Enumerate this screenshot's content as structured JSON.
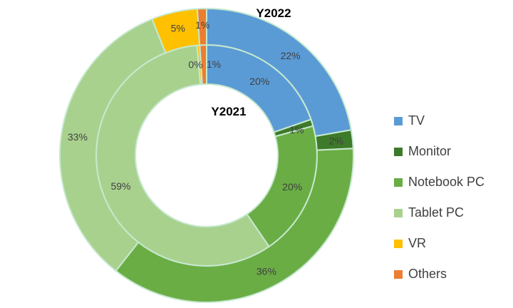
{
  "chart_data": {
    "type": "donut",
    "categories": [
      "TV",
      "Monitor",
      "Notebook PC",
      "Tablet PC",
      "VR",
      "Others"
    ],
    "colors": [
      "#5b9bd5",
      "#3d7a29",
      "#6aad45",
      "#a9d18e",
      "#ffc000",
      "#ed7d31"
    ],
    "series": [
      {
        "name": "Y2021",
        "values": [
          20,
          1,
          20,
          59,
          0,
          1
        ],
        "labels": [
          "20%",
          "1%",
          "20%",
          "59%",
          "0%",
          "1%"
        ]
      },
      {
        "name": "Y2022",
        "values": [
          22,
          2,
          36,
          33,
          5,
          1
        ],
        "labels": [
          "22%",
          "2%",
          "36%",
          "33%",
          "5%",
          "1%"
        ]
      }
    ],
    "legend_position": "right"
  }
}
